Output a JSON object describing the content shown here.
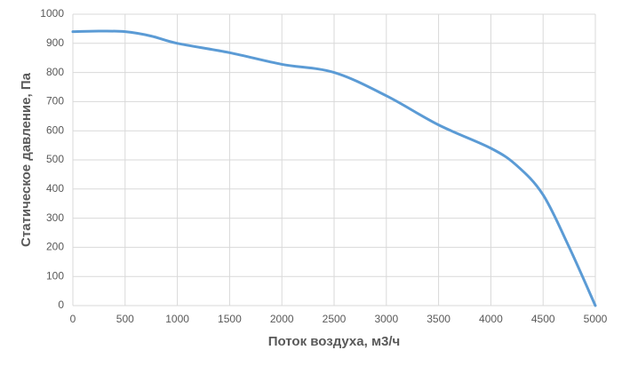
{
  "chart_data": {
    "type": "line",
    "x_label": "Поток воздуха, м3/ч",
    "y_label": "Статическое давление, Па",
    "x": [
      0,
      250,
      500,
      750,
      1000,
      1500,
      2000,
      2500,
      3000,
      3500,
      4000,
      4250,
      4500,
      4750,
      5000
    ],
    "series": [
      {
        "name": "Статическое давление",
        "color": "#5b9bd5",
        "values": [
          940,
          942,
          940,
          925,
          900,
          868,
          828,
          800,
          720,
          620,
          540,
          480,
          380,
          200,
          0
        ]
      }
    ],
    "xlim": [
      0,
      5000
    ],
    "xticks": [
      0,
      500,
      1000,
      1500,
      2000,
      2500,
      3000,
      3500,
      4000,
      4500,
      5000
    ],
    "ylim": [
      0,
      1000
    ],
    "yticks": [
      0,
      100,
      200,
      300,
      400,
      500,
      600,
      700,
      800,
      900,
      1000
    ],
    "grid": true
  }
}
